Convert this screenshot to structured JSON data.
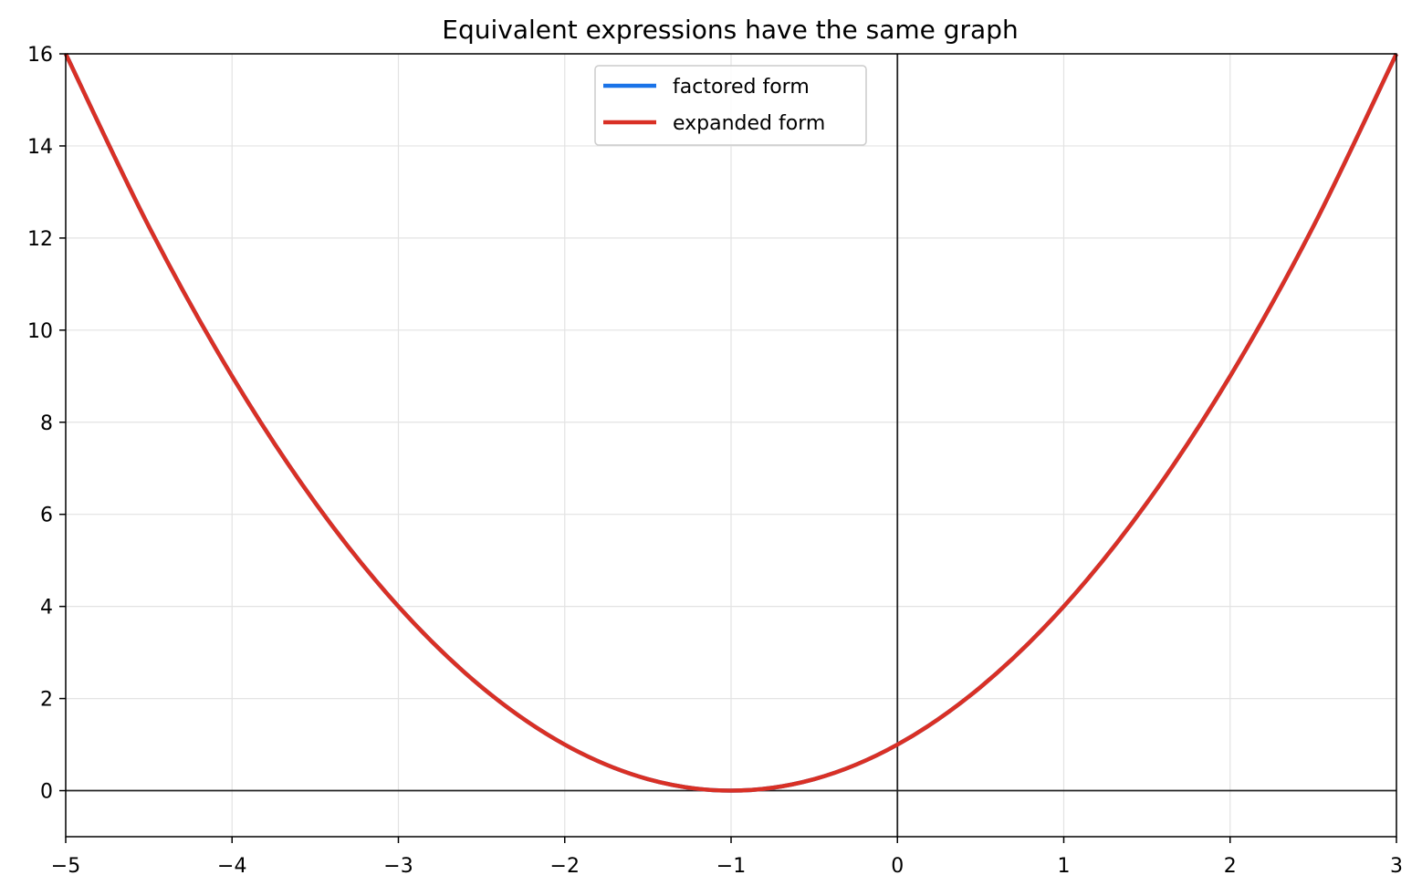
{
  "chart_data": {
    "type": "line",
    "title": "Equivalent expressions have the same graph",
    "xlabel": "",
    "ylabel": "",
    "xlim": [
      -5,
      3
    ],
    "ylim": [
      -1,
      16
    ],
    "x_ticks": [
      -5,
      -4,
      -3,
      -2,
      -1,
      0,
      1,
      2,
      3
    ],
    "x_tick_labels": [
      "−5",
      "−4",
      "−3",
      "−2",
      "−1",
      "0",
      "1",
      "2",
      "3"
    ],
    "y_ticks": [
      0,
      2,
      4,
      6,
      8,
      10,
      12,
      14,
      16
    ],
    "y_tick_labels": [
      "0",
      "2",
      "4",
      "6",
      "8",
      "10",
      "12",
      "14",
      "16"
    ],
    "grid": true,
    "reference_lines": {
      "x": 0,
      "y": 0
    },
    "legend_position": "upper-center",
    "series": [
      {
        "name": "factored form",
        "color": "#1a73e8",
        "x": [
          -5,
          -4.5,
          -4,
          -3.5,
          -3,
          -2.5,
          -2,
          -1.5,
          -1,
          -0.5,
          0,
          0.5,
          1,
          1.5,
          2,
          2.5,
          3
        ],
        "y": [
          16,
          12.25,
          9,
          6.25,
          4,
          2.25,
          1,
          0.25,
          0,
          0.25,
          1,
          2.25,
          4,
          6.25,
          9,
          12.25,
          16
        ]
      },
      {
        "name": "expanded form",
        "color": "#d93025",
        "x": [
          -5,
          -4.5,
          -4,
          -3.5,
          -3,
          -2.5,
          -2,
          -1.5,
          -1,
          -0.5,
          0,
          0.5,
          1,
          1.5,
          2,
          2.5,
          3
        ],
        "y": [
          16,
          12.25,
          9,
          6.25,
          4,
          2.25,
          1,
          0.25,
          0,
          0.25,
          1,
          2.25,
          4,
          6.25,
          9,
          12.25,
          16
        ]
      }
    ]
  }
}
